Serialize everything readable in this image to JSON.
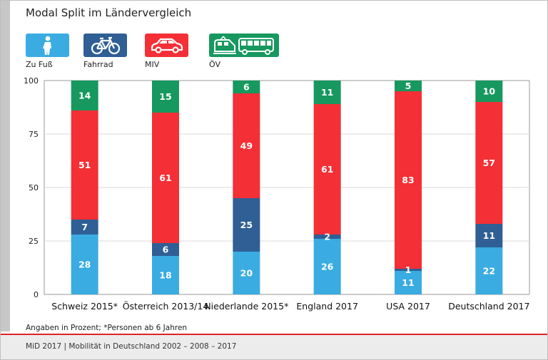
{
  "title": "Modal Split im Ländervergleich",
  "legend": [
    {
      "label": "Zu Fuß",
      "color": "#3aace2",
      "icon": "pedestrian-icon"
    },
    {
      "label": "Fahrrad",
      "color": "#2f5f95",
      "icon": "bicycle-icon"
    },
    {
      "label": "MIV",
      "color": "#f42f35",
      "icon": "car-icon"
    },
    {
      "label": "ÖV",
      "color": "#17985f",
      "icon": "train-bus-icon"
    }
  ],
  "footnote": "Angaben in Prozent; *Personen ab 6 Jahren",
  "footer": "MiD 2017 | Mobilität in Deutschland 2002 – 2008 – 2017",
  "chart_data": {
    "type": "bar",
    "stacked": true,
    "categories": [
      "Schweiz 2015*",
      "Österreich 2013/14",
      "Niederlande 2015*",
      "England 2017",
      "USA 2017",
      "Deutschland 2017"
    ],
    "series": [
      {
        "name": "Zu Fuß",
        "values": [
          28,
          18,
          20,
          26,
          11,
          22
        ],
        "color": "#3aace2"
      },
      {
        "name": "Fahrrad",
        "values": [
          7,
          6,
          25,
          2,
          1,
          11
        ],
        "color": "#2f5f95"
      },
      {
        "name": "MIV",
        "values": [
          51,
          61,
          49,
          61,
          83,
          57
        ],
        "color": "#f42f35"
      },
      {
        "name": "ÖV",
        "values": [
          14,
          15,
          6,
          11,
          5,
          10
        ],
        "color": "#17985f"
      }
    ],
    "yticks": [
      "0",
      "25",
      "50",
      "75",
      "100"
    ],
    "ylim": [
      0,
      100
    ],
    "title": "Modal Split im Ländervergleich",
    "xlabel": "",
    "ylabel": ""
  }
}
